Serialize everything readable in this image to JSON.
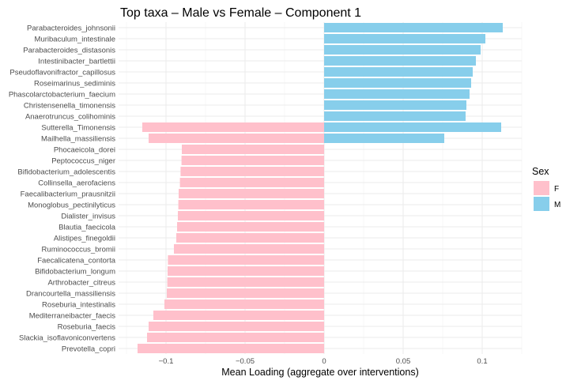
{
  "chart_data": {
    "type": "bar",
    "orientation": "horizontal",
    "title": "Top taxa – Male vs Female – Component 1",
    "xlabel": "Mean Loading (aggregate over interventions)",
    "ylabel": "",
    "xlim": [
      -0.13,
      0.125
    ],
    "xticks": [
      -0.1,
      -0.05,
      0,
      0.05,
      0.1
    ],
    "xtick_labels": [
      "−0.1",
      "−0.05",
      "0",
      "0.05",
      "0.1"
    ],
    "grid": true,
    "legend": {
      "title": "Sex",
      "position": "right",
      "entries": [
        {
          "label": "F",
          "color": "#ffc0cb"
        },
        {
          "label": "M",
          "color": "#87ceeb"
        }
      ]
    },
    "bars": [
      {
        "taxon": "Parabacteroides_johnsonii",
        "value": 0.113,
        "sex": "M"
      },
      {
        "taxon": "Muribaculum_intestinale",
        "value": 0.102,
        "sex": "M"
      },
      {
        "taxon": "Parabacteroides_distasonis",
        "value": 0.099,
        "sex": "M"
      },
      {
        "taxon": "Intestinibacter_bartlettii",
        "value": 0.096,
        "sex": "M"
      },
      {
        "taxon": "Pseudoflavonifractor_capillosus",
        "value": 0.094,
        "sex": "M"
      },
      {
        "taxon": "Roseimarinus_sediminis",
        "value": 0.093,
        "sex": "M"
      },
      {
        "taxon": "Phascolarctobacterium_faecium",
        "value": 0.092,
        "sex": "M"
      },
      {
        "taxon": "Christensenella_timonensis",
        "value": 0.09,
        "sex": "M"
      },
      {
        "taxon": "Anaerotruncus_colihominis",
        "value": 0.0895,
        "sex": "M"
      },
      {
        "taxon": "Sutterella_Timonensis",
        "value": 0.112,
        "sex": "M"
      },
      {
        "taxon": "Sutterella_Timonensis",
        "value": -0.115,
        "sex": "F"
      },
      {
        "taxon": "Mailhella_massiliensis",
        "value": 0.076,
        "sex": "M"
      },
      {
        "taxon": "Mailhella_massiliensis",
        "value": -0.111,
        "sex": "F"
      },
      {
        "taxon": "Phocaeicola_dorei",
        "value": -0.09,
        "sex": "F"
      },
      {
        "taxon": "Peptococcus_niger",
        "value": -0.0902,
        "sex": "F"
      },
      {
        "taxon": "Bifidobacterium_adolescentis",
        "value": -0.0908,
        "sex": "F"
      },
      {
        "taxon": "Collinsella_aerofaciens",
        "value": -0.0912,
        "sex": "F"
      },
      {
        "taxon": "Faecalibacterium_prausnitzii",
        "value": -0.092,
        "sex": "F"
      },
      {
        "taxon": "Monoglobus_pectinilyticus",
        "value": -0.0922,
        "sex": "F"
      },
      {
        "taxon": "Dialister_invisus",
        "value": -0.0925,
        "sex": "F"
      },
      {
        "taxon": "Blautia_faecicola",
        "value": -0.093,
        "sex": "F"
      },
      {
        "taxon": "Alistipes_finegoldii",
        "value": -0.0935,
        "sex": "F"
      },
      {
        "taxon": "Ruminococcus_bromii",
        "value": -0.095,
        "sex": "F"
      },
      {
        "taxon": "Faecalicatena_contorta",
        "value": -0.0988,
        "sex": "F"
      },
      {
        "taxon": "Bifidobacterium_longum",
        "value": -0.099,
        "sex": "F"
      },
      {
        "taxon": "Arthrobacter_citreus",
        "value": -0.0992,
        "sex": "F"
      },
      {
        "taxon": "Drancourtella_massiliensis",
        "value": -0.0995,
        "sex": "F"
      },
      {
        "taxon": "Roseburia_intestinalis",
        "value": -0.101,
        "sex": "F"
      },
      {
        "taxon": "Mediterraneibacter_faecis",
        "value": -0.108,
        "sex": "F"
      },
      {
        "taxon": "Roseburia_faecis",
        "value": -0.111,
        "sex": "F"
      },
      {
        "taxon": "Slackia_isoflavoniconvertens",
        "value": -0.112,
        "sex": "F"
      },
      {
        "taxon": "Prevotella_copri",
        "value": -0.118,
        "sex": "F"
      }
    ],
    "categories": [
      "Parabacteroides_johnsonii",
      "Muribaculum_intestinale",
      "Parabacteroides_distasonis",
      "Intestinibacter_bartlettii",
      "Pseudoflavonifractor_capillosus",
      "Roseimarinus_sediminis",
      "Phascolarctobacterium_faecium",
      "Christensenella_timonensis",
      "Anaerotruncus_colihominis",
      "Sutterella_Timonensis",
      "Mailhella_massiliensis",
      "Phocaeicola_dorei",
      "Peptococcus_niger",
      "Bifidobacterium_adolescentis",
      "Collinsella_aerofaciens",
      "Faecalibacterium_prausnitzii",
      "Monoglobus_pectinilyticus",
      "Dialister_invisus",
      "Blautia_faecicola",
      "Alistipes_finegoldii",
      "Ruminococcus_bromii",
      "Faecalicatena_contorta",
      "Bifidobacterium_longum",
      "Arthrobacter_citreus",
      "Drancourtella_massiliensis",
      "Roseburia_intestinalis",
      "Mediterraneibacter_faecis",
      "Roseburia_faecis",
      "Slackia_isoflavoniconvertens",
      "Prevotella_copri"
    ]
  }
}
